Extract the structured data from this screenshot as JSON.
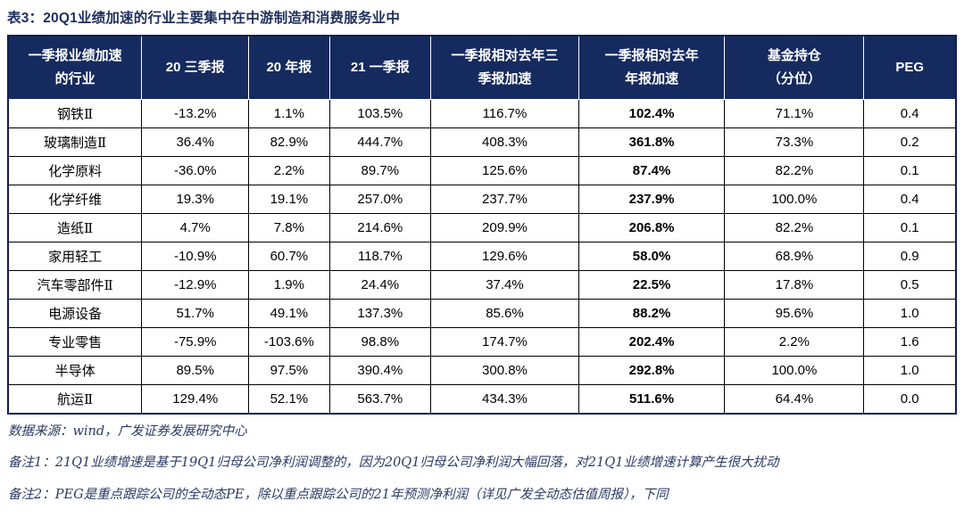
{
  "title": "表3：20Q1业绩加速的行业主要集中在中游制造和消费服务业中",
  "table": {
    "columns": [
      "一季报业绩加速\n的行业",
      "20 三季报",
      "20 年报",
      "21 一季报",
      "一季报相对去年三\n季报加速",
      "一季报相对去年\n年报加速",
      "基金持仓\n（分位）",
      "PEG"
    ],
    "bold_column_label": "一季报相对去年年报加速",
    "rows": [
      [
        "钢铁Ⅱ",
        "-13.2%",
        "1.1%",
        "103.5%",
        "116.7%",
        "102.4%",
        "71.1%",
        "0.4"
      ],
      [
        "玻璃制造Ⅱ",
        "36.4%",
        "82.9%",
        "444.7%",
        "408.3%",
        "361.8%",
        "73.3%",
        "0.2"
      ],
      [
        "化学原料",
        "-36.0%",
        "2.2%",
        "89.7%",
        "125.6%",
        "87.4%",
        "82.2%",
        "0.1"
      ],
      [
        "化学纤维",
        "19.3%",
        "19.1%",
        "257.0%",
        "237.7%",
        "237.9%",
        "100.0%",
        "0.4"
      ],
      [
        "造纸Ⅱ",
        "4.7%",
        "7.8%",
        "214.6%",
        "209.9%",
        "206.8%",
        "82.2%",
        "0.1"
      ],
      [
        "家用轻工",
        "-10.9%",
        "60.7%",
        "118.7%",
        "129.6%",
        "58.0%",
        "68.9%",
        "0.9"
      ],
      [
        "汽车零部件Ⅱ",
        "-12.9%",
        "1.9%",
        "24.4%",
        "37.4%",
        "22.5%",
        "17.8%",
        "0.5"
      ],
      [
        "电源设备",
        "51.7%",
        "49.1%",
        "137.3%",
        "85.6%",
        "88.2%",
        "95.6%",
        "1.0"
      ],
      [
        "专业零售",
        "-75.9%",
        "-103.6%",
        "98.8%",
        "174.7%",
        "202.4%",
        "2.2%",
        "1.6"
      ],
      [
        "半导体",
        "89.5%",
        "97.5%",
        "390.4%",
        "300.8%",
        "292.8%",
        "100.0%",
        "1.0"
      ],
      [
        "航运Ⅱ",
        "129.4%",
        "52.1%",
        "563.7%",
        "434.3%",
        "511.6%",
        "64.4%",
        "0.0"
      ]
    ]
  },
  "footer": {
    "source": "数据来源：wind，广发证券发展研究中心",
    "note1": "备注1：21Q1业绩增速是基于19Q1归母公司净利润调整的，因为20Q1归母公司净利润大幅回落，对21Q1业绩增速计算产生很大扰动",
    "note2": "备注2：PEG是重点跟踪公司的全动态PE，除以重点跟踪公司的21年预测净利润（详见广发全动态估值周报），下同"
  },
  "colors": {
    "header_bg": "#152A5E",
    "header_text": "#FFFFFF",
    "title_text": "#1E2F5E",
    "body_border": "#000000",
    "footnote_text": "#2B3A64"
  }
}
